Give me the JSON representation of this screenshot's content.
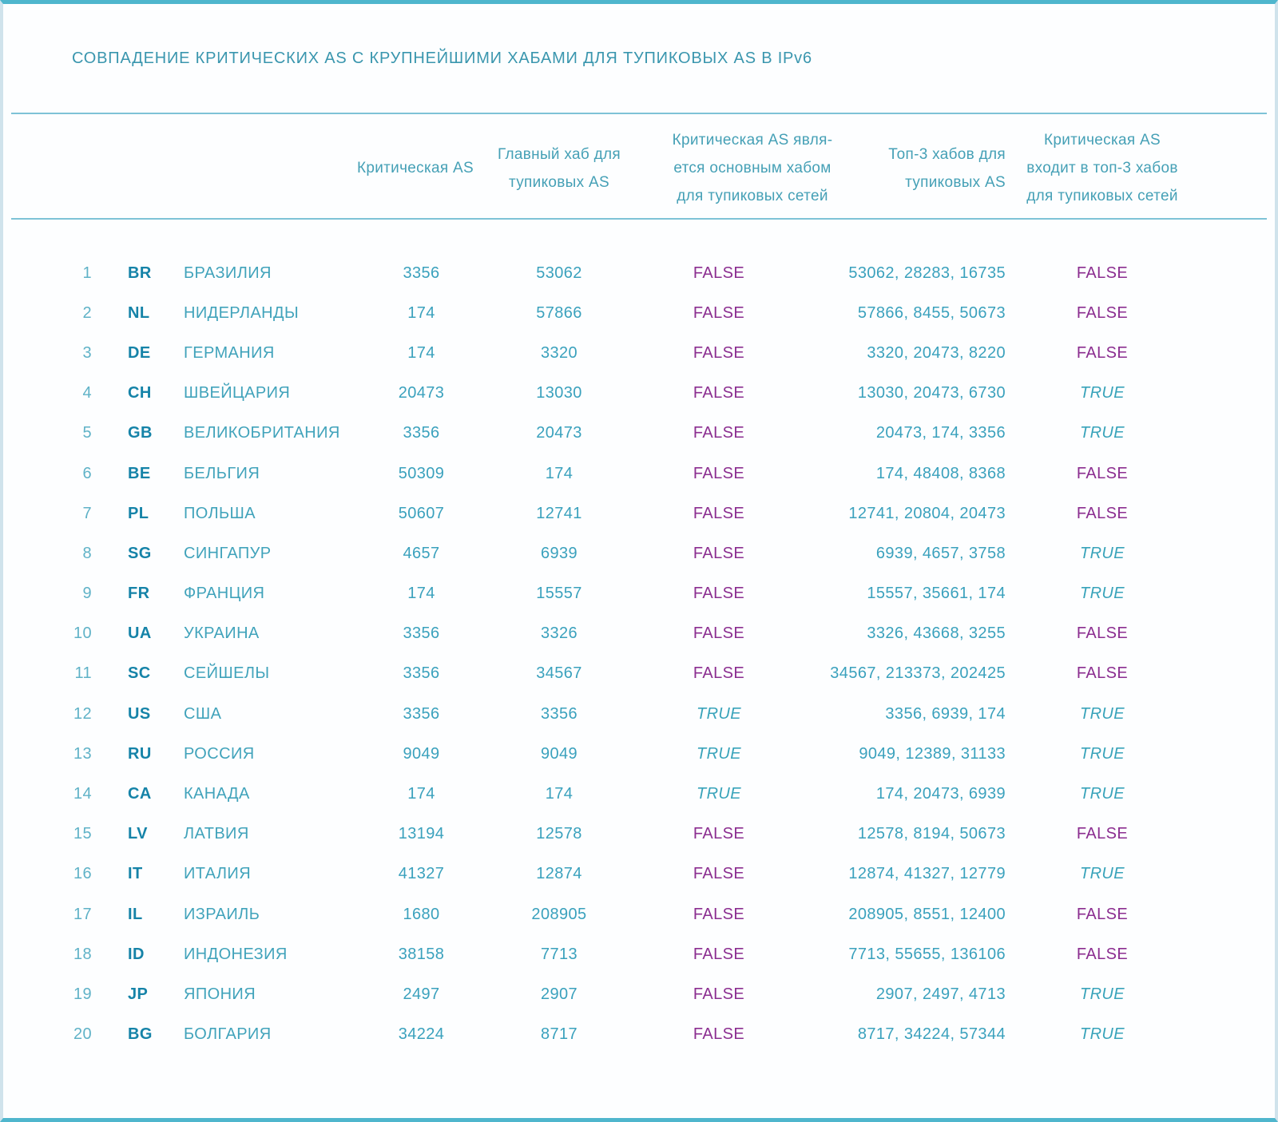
{
  "title": "СОВПАДЕНИЕ КРИТИЧЕСКИХ AS С КРУПНЕЙШИМИ ХАБАМИ ДЛЯ ТУПИКОВЫХ AS В IPv6",
  "colors": {
    "teal_text": "#3AA1BD",
    "dark_teal_code": "#1583A8",
    "light_teal_number": "#5FB2C7",
    "header_teal": "#45A0B6",
    "false_purple": "#8B2E90",
    "true_teal": "#38A3BA",
    "divider": "#7EC3D7",
    "border_accent": "#4FB6CD",
    "border_side": "#D0E3EC"
  },
  "chart_data": {
    "type": "table",
    "title": "СОВПАДЕНИЕ КРИТИЧЕСКИХ AS С КРУПНЕЙШИМИ ХАБАМИ ДЛЯ ТУПИКОВЫХ AS В IPv6",
    "headers": {
      "critical_as": "Критическая AS",
      "main_hub": "Главный хаб для\nтупиковых AS",
      "is_main_hub": "Критическая AS явля-\nется основным хабом\nдля тупиковых сетей",
      "top3": "Топ-3 хабов для\nтупиковых AS",
      "in_top3": "Критическая AS\nвходит в топ-3 хабов\nдля тупиковых сетей"
    },
    "rows": [
      {
        "n": 1,
        "code": "BR",
        "country": "БРАЗИЛИЯ",
        "critical_as": "3356",
        "main_hub": "53062",
        "is_main_hub": "FALSE",
        "top3": "53062, 28283, 16735",
        "in_top3": "FALSE"
      },
      {
        "n": 2,
        "code": "NL",
        "country": "НИДЕРЛАНДЫ",
        "critical_as": "174",
        "main_hub": "57866",
        "is_main_hub": "FALSE",
        "top3": "57866, 8455, 50673",
        "in_top3": "FALSE"
      },
      {
        "n": 3,
        "code": "DE",
        "country": "ГЕРМАНИЯ",
        "critical_as": "174",
        "main_hub": "3320",
        "is_main_hub": "FALSE",
        "top3": "3320, 20473, 8220",
        "in_top3": "FALSE"
      },
      {
        "n": 4,
        "code": "CH",
        "country": "ШВЕЙЦАРИЯ",
        "critical_as": "20473",
        "main_hub": "13030",
        "is_main_hub": "FALSE",
        "top3": "13030, 20473, 6730",
        "in_top3": "TRUE"
      },
      {
        "n": 5,
        "code": "GB",
        "country": "ВЕЛИКОБРИТАНИЯ",
        "critical_as": "3356",
        "main_hub": "20473",
        "is_main_hub": "FALSE",
        "top3": "20473, 174, 3356",
        "in_top3": "TRUE"
      },
      {
        "n": 6,
        "code": "BE",
        "country": "БЕЛЬГИЯ",
        "critical_as": "50309",
        "main_hub": "174",
        "is_main_hub": "FALSE",
        "top3": "174, 48408, 8368",
        "in_top3": "FALSE"
      },
      {
        "n": 7,
        "code": "PL",
        "country": "ПОЛЬША",
        "critical_as": "50607",
        "main_hub": "12741",
        "is_main_hub": "FALSE",
        "top3": "12741, 20804, 20473",
        "in_top3": "FALSE"
      },
      {
        "n": 8,
        "code": "SG",
        "country": "СИНГАПУР",
        "critical_as": "4657",
        "main_hub": "6939",
        "is_main_hub": "FALSE",
        "top3": "6939, 4657, 3758",
        "in_top3": "TRUE"
      },
      {
        "n": 9,
        "code": "FR",
        "country": "ФРАНЦИЯ",
        "critical_as": "174",
        "main_hub": "15557",
        "is_main_hub": "FALSE",
        "top3": "15557, 35661, 174",
        "in_top3": "TRUE"
      },
      {
        "n": 10,
        "code": "UA",
        "country": "УКРАИНА",
        "critical_as": "3356",
        "main_hub": "3326",
        "is_main_hub": "FALSE",
        "top3": "3326, 43668, 3255",
        "in_top3": "FALSE"
      },
      {
        "n": 11,
        "code": "SC",
        "country": "СЕЙШЕЛЫ",
        "critical_as": "3356",
        "main_hub": "34567",
        "is_main_hub": "FALSE",
        "top3": "34567, 213373, 202425",
        "in_top3": "FALSE"
      },
      {
        "n": 12,
        "code": "US",
        "country": "США",
        "critical_as": "3356",
        "main_hub": "3356",
        "is_main_hub": "TRUE",
        "top3": "3356, 6939, 174",
        "in_top3": "TRUE"
      },
      {
        "n": 13,
        "code": "RU",
        "country": "РОССИЯ",
        "critical_as": "9049",
        "main_hub": "9049",
        "is_main_hub": "TRUE",
        "top3": "9049, 12389, 31133",
        "in_top3": "TRUE"
      },
      {
        "n": 14,
        "code": "CA",
        "country": "КАНАДА",
        "critical_as": "174",
        "main_hub": "174",
        "is_main_hub": "TRUE",
        "top3": "174, 20473, 6939",
        "in_top3": "TRUE"
      },
      {
        "n": 15,
        "code": "LV",
        "country": "ЛАТВИЯ",
        "critical_as": "13194",
        "main_hub": "12578",
        "is_main_hub": "FALSE",
        "top3": "12578, 8194, 50673",
        "in_top3": "FALSE"
      },
      {
        "n": 16,
        "code": "IT",
        "country": "ИТАЛИЯ",
        "critical_as": "41327",
        "main_hub": "12874",
        "is_main_hub": "FALSE",
        "top3": "12874, 41327, 12779",
        "in_top3": "TRUE"
      },
      {
        "n": 17,
        "code": "IL",
        "country": "ИЗРАИЛЬ",
        "critical_as": "1680",
        "main_hub": "208905",
        "is_main_hub": "FALSE",
        "top3": "208905, 8551, 12400",
        "in_top3": "FALSE"
      },
      {
        "n": 18,
        "code": "ID",
        "country": "ИНДОНЕЗИЯ",
        "critical_as": "38158",
        "main_hub": "7713",
        "is_main_hub": "FALSE",
        "top3": "7713, 55655, 136106",
        "in_top3": "FALSE"
      },
      {
        "n": 19,
        "code": "JP",
        "country": "ЯПОНИЯ",
        "critical_as": "2497",
        "main_hub": "2907",
        "is_main_hub": "FALSE",
        "top3": "2907, 2497, 4713",
        "in_top3": "TRUE"
      },
      {
        "n": 20,
        "code": "BG",
        "country": "БОЛГАРИЯ",
        "critical_as": "34224",
        "main_hub": "8717",
        "is_main_hub": "FALSE",
        "top3": "8717, 34224, 57344",
        "in_top3": "TRUE"
      }
    ]
  }
}
